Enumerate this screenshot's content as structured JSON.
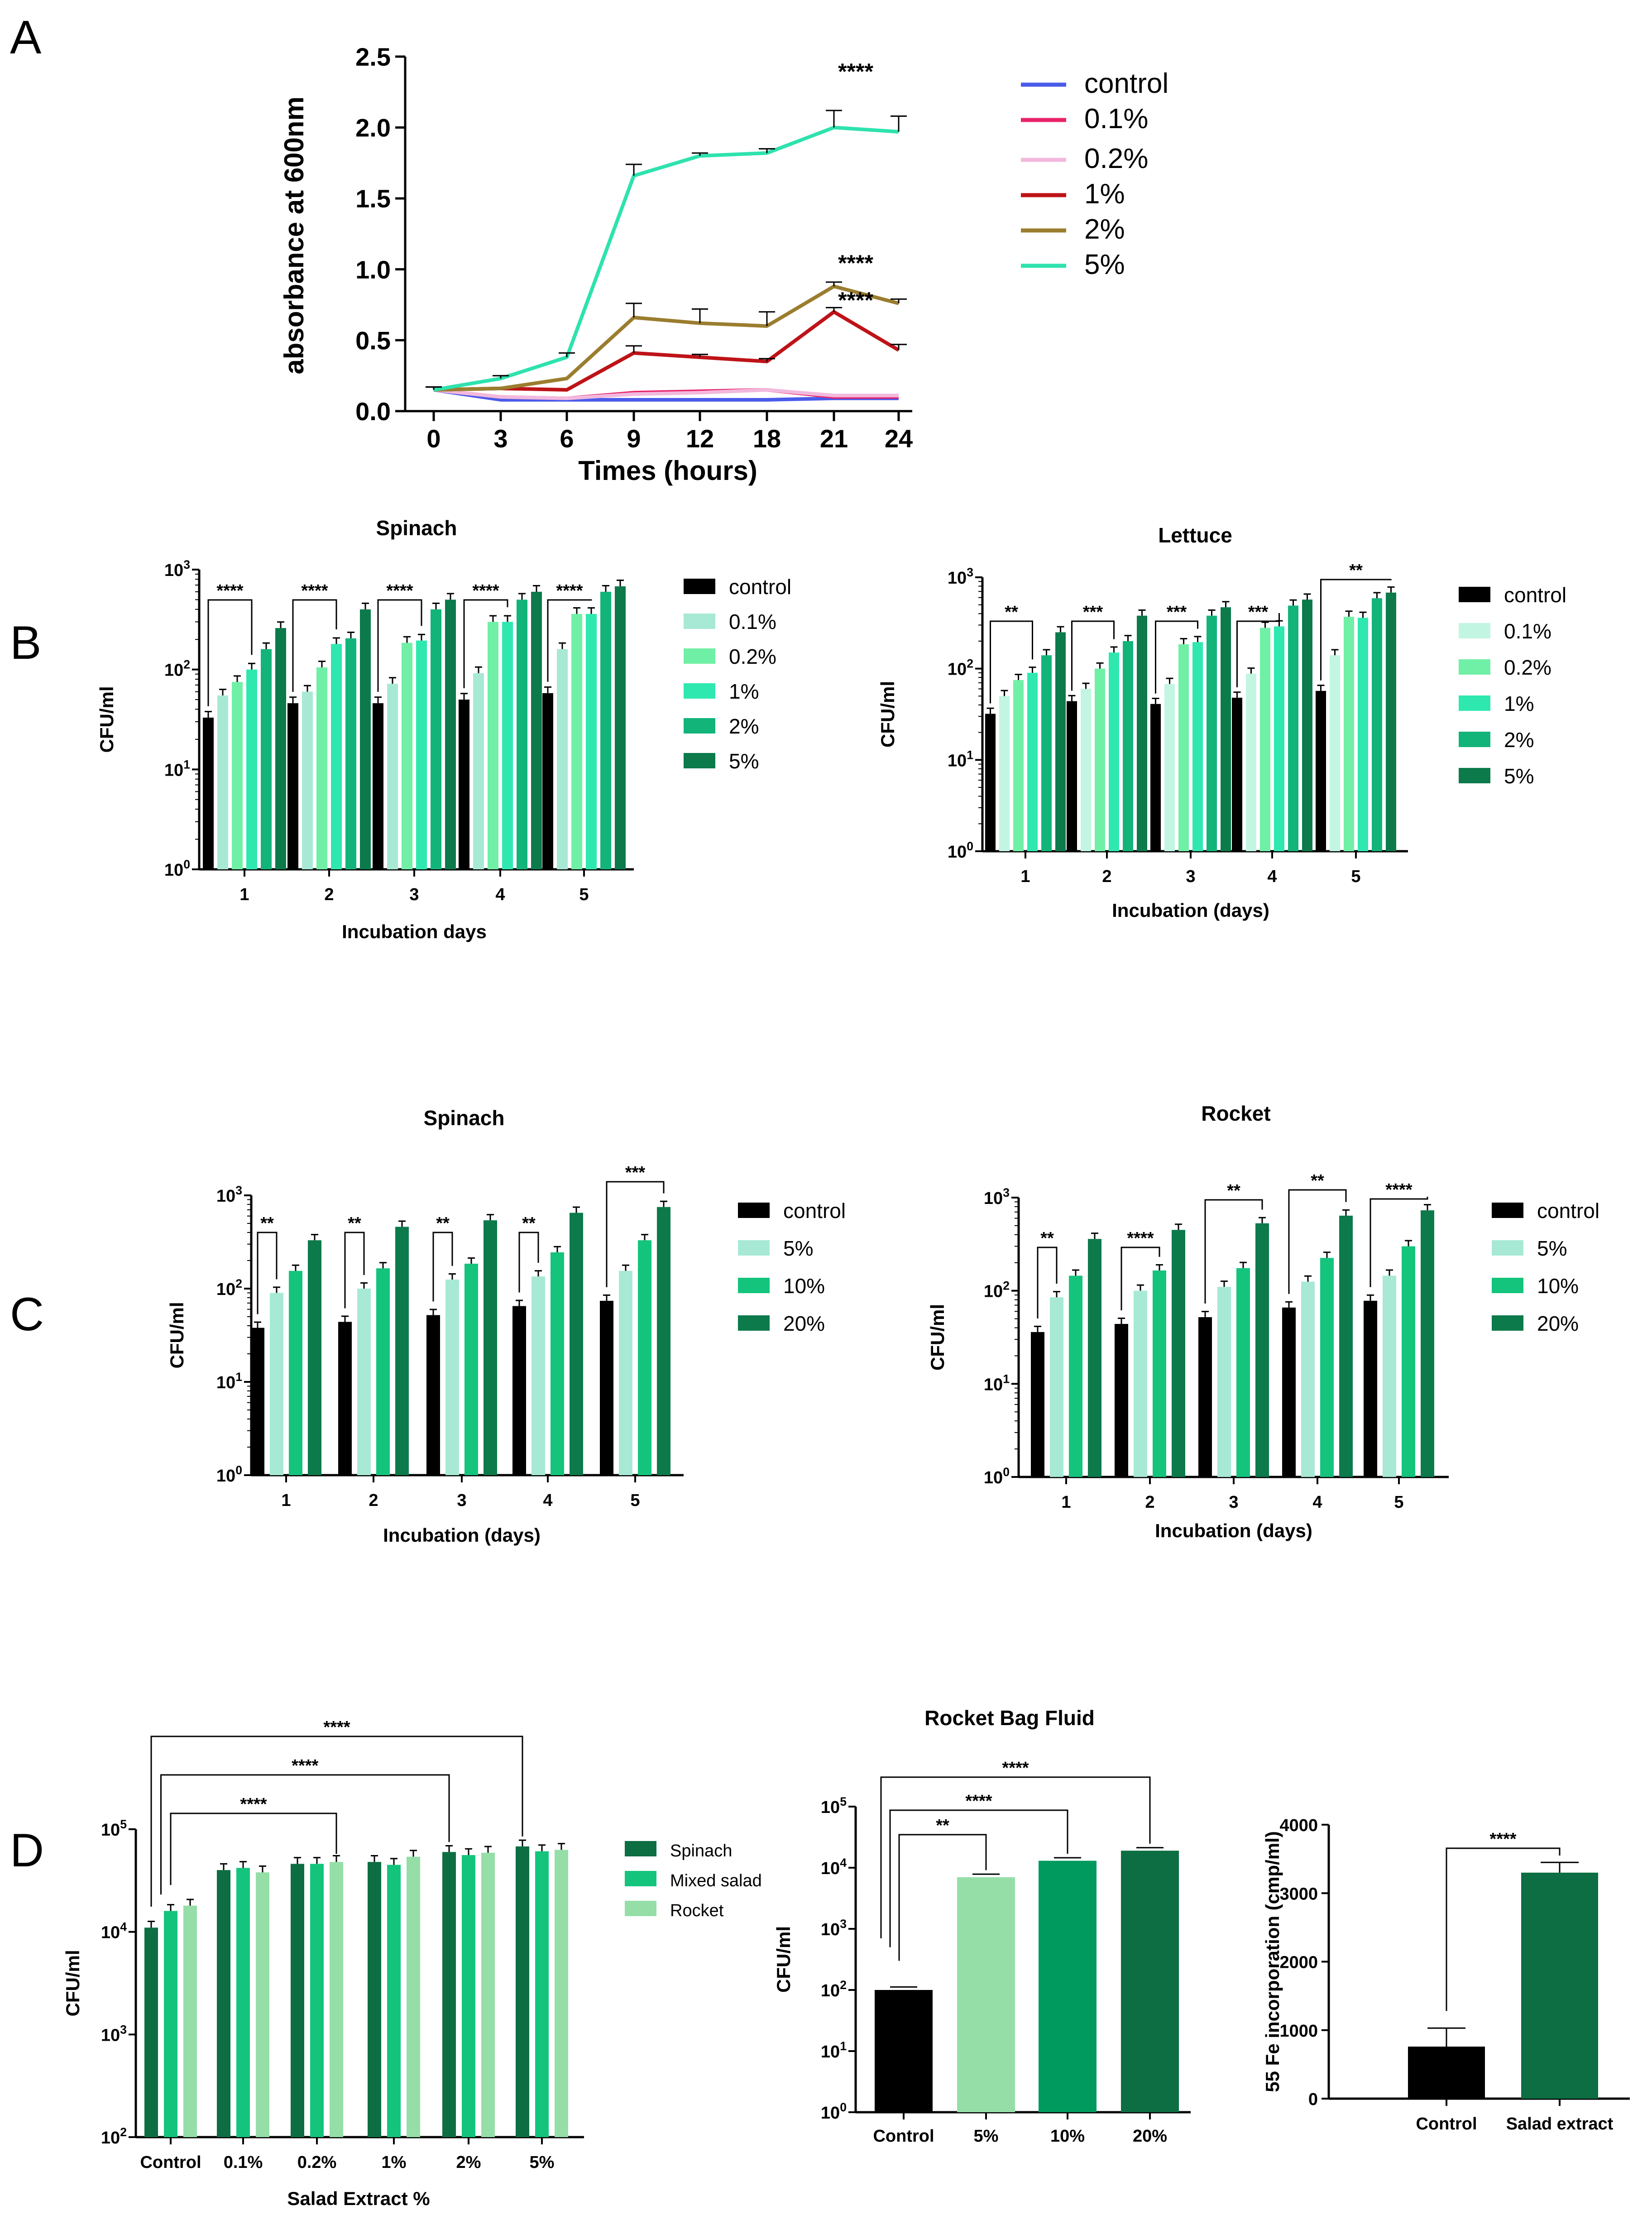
{
  "panels": [
    {
      "label": "A"
    },
    {
      "label": "B"
    },
    {
      "label": "C"
    },
    {
      "label": "D"
    }
  ],
  "chart_data": [
    {
      "type": "line",
      "title": "",
      "xlabel": "Times (hours)",
      "ylabel": "absorbance at 600nm",
      "categories": [
        "0",
        "3",
        "6",
        "9",
        "12",
        "18",
        "21",
        "24"
      ],
      "ylim": [
        0,
        2.5
      ],
      "yticks": [
        "0.0",
        "0.5",
        "1.0",
        "1.5",
        "2.0",
        "2.5"
      ],
      "series": [
        {
          "name": "control",
          "color": "#4a5bea",
          "values": [
            0.15,
            0.08,
            0.08,
            0.08,
            0.08,
            0.08,
            0.09,
            0.09
          ],
          "errors": [
            0.01,
            0.01,
            0.01,
            0.01,
            0.01,
            0.01,
            0.01,
            0.01
          ]
        },
        {
          "name": "0.1%",
          "color": "#e8236a",
          "values": [
            0.15,
            0.1,
            0.09,
            0.13,
            0.14,
            0.15,
            0.1,
            0.1
          ],
          "errors": [
            0.01,
            0.01,
            0.01,
            0.01,
            0.01,
            0.01,
            0.01,
            0.01
          ]
        },
        {
          "name": "0.2%",
          "color": "#f2b9dd",
          "values": [
            0.15,
            0.1,
            0.09,
            0.12,
            0.13,
            0.15,
            0.11,
            0.11
          ],
          "errors": [
            0.01,
            0.01,
            0.01,
            0.01,
            0.01,
            0.01,
            0.01,
            0.01
          ]
        },
        {
          "name": "1%",
          "color": "#be1318",
          "values": [
            0.15,
            0.16,
            0.15,
            0.41,
            0.38,
            0.35,
            0.7,
            0.43
          ],
          "errors": [
            0.02,
            0.01,
            0.01,
            0.05,
            0.02,
            0.02,
            0.03,
            0.04
          ]
        },
        {
          "name": "2%",
          "color": "#9a7d2e",
          "values": [
            0.15,
            0.16,
            0.23,
            0.66,
            0.62,
            0.6,
            0.88,
            0.76
          ],
          "errors": [
            0.02,
            0.01,
            0.01,
            0.1,
            0.1,
            0.1,
            0.03,
            0.03
          ]
        },
        {
          "name": "5%",
          "color": "#2ee2ae",
          "values": [
            0.15,
            0.23,
            0.38,
            1.66,
            1.8,
            1.82,
            2.0,
            1.97
          ],
          "errors": [
            0.02,
            0.02,
            0.03,
            0.08,
            0.02,
            0.03,
            0.12,
            0.11
          ]
        }
      ],
      "annotations": [
        {
          "text": "****",
          "series": "5%",
          "x": "21"
        },
        {
          "text": "****",
          "series": "2%",
          "x": "21"
        },
        {
          "text": "****",
          "series": "1%",
          "x": "21"
        }
      ]
    },
    {
      "type": "bar",
      "title": "Spinach",
      "xlabel": "Incubation days",
      "ylabel": "CFU/ml",
      "yscale": "log",
      "ylim": [
        1,
        1000
      ],
      "yticks": [
        {
          "base": "10",
          "exp": "0"
        },
        {
          "base": "10",
          "exp": "1"
        },
        {
          "base": "10",
          "exp": "2"
        },
        {
          "base": "10",
          "exp": "3"
        }
      ],
      "categories": [
        "1",
        "2",
        "3",
        "4",
        "5"
      ],
      "series": [
        {
          "name": "control",
          "color": "#000000",
          "values": [
            33,
            46,
            46,
            50,
            58
          ]
        },
        {
          "name": "0.1%",
          "color": "#a7e9d5",
          "values": [
            55,
            60,
            72,
            92,
            160
          ]
        },
        {
          "name": "0.2%",
          "color": "#70f0a6",
          "values": [
            75,
            105,
            185,
            300,
            360
          ]
        },
        {
          "name": "1%",
          "color": "#2ee8b0",
          "values": [
            100,
            180,
            195,
            300,
            360
          ]
        },
        {
          "name": "2%",
          "color": "#12b47a",
          "values": [
            160,
            205,
            400,
            500,
            600
          ]
        },
        {
          "name": "5%",
          "color": "#0c7a4b",
          "values": [
            260,
            400,
            500,
            600,
            680
          ]
        }
      ],
      "significance": [
        "****",
        "****",
        "****",
        "****",
        "****"
      ]
    },
    {
      "type": "bar",
      "title": "Lettuce",
      "xlabel": "Incubation (days)",
      "ylabel": "CFU/ml",
      "yscale": "log",
      "ylim": [
        1,
        1000
      ],
      "yticks": [
        {
          "base": "10",
          "exp": "0"
        },
        {
          "base": "10",
          "exp": "1"
        },
        {
          "base": "10",
          "exp": "2"
        },
        {
          "base": "10",
          "exp": "3"
        }
      ],
      "categories": [
        "1",
        "2",
        "3",
        "4",
        "5"
      ],
      "series": [
        {
          "name": "control",
          "color": "#000000",
          "values": [
            32,
            44,
            41,
            48,
            57
          ]
        },
        {
          "name": "0.1%",
          "color": "#c2f5e2",
          "values": [
            50,
            60,
            68,
            88,
            140
          ]
        },
        {
          "name": "0.2%",
          "color": "#70f0a6",
          "values": [
            75,
            100,
            185,
            280,
            370
          ]
        },
        {
          "name": "1%",
          "color": "#2ee8b0",
          "values": [
            90,
            150,
            195,
            290,
            360
          ]
        },
        {
          "name": "2%",
          "color": "#12b47a",
          "values": [
            140,
            200,
            380,
            490,
            590
          ]
        },
        {
          "name": "5%",
          "color": "#0c7a4b",
          "values": [
            250,
            380,
            470,
            570,
            680
          ]
        }
      ],
      "significance": [
        "**",
        "***",
        "***",
        "***",
        "**"
      ]
    },
    {
      "type": "bar",
      "title": "Spinach",
      "xlabel": "Incubation (days)",
      "ylabel": "CFU/ml",
      "yscale": "log",
      "ylim": [
        1,
        1000
      ],
      "yticks": [
        {
          "base": "10",
          "exp": "0"
        },
        {
          "base": "10",
          "exp": "1"
        },
        {
          "base": "10",
          "exp": "2"
        },
        {
          "base": "10",
          "exp": "3"
        }
      ],
      "categories": [
        "1",
        "2",
        "3",
        "4",
        "5"
      ],
      "series": [
        {
          "name": "control",
          "color": "#000000",
          "values": [
            38,
            44,
            52,
            65,
            74
          ]
        },
        {
          "name": "5%",
          "color": "#a7e9d5",
          "values": [
            90,
            100,
            125,
            135,
            155
          ]
        },
        {
          "name": "10%",
          "color": "#14c47c",
          "values": [
            155,
            165,
            185,
            245,
            330
          ]
        },
        {
          "name": "20%",
          "color": "#0c7a4b",
          "values": [
            330,
            460,
            540,
            650,
            750
          ]
        }
      ],
      "significance": [
        "**",
        "**",
        "**",
        "**",
        "***"
      ]
    },
    {
      "type": "bar",
      "title": "Rocket",
      "xlabel": "Incubation (days)",
      "ylabel": "CFU/ml",
      "yscale": "log",
      "ylim": [
        1,
        1000
      ],
      "yticks": [
        {
          "base": "10",
          "exp": "0"
        },
        {
          "base": "10",
          "exp": "1"
        },
        {
          "base": "10",
          "exp": "2"
        },
        {
          "base": "10",
          "exp": "3"
        }
      ],
      "categories": [
        "1",
        "2",
        "3",
        "4",
        "5"
      ],
      "series": [
        {
          "name": "control",
          "color": "#000000",
          "values": [
            36,
            44,
            52,
            66,
            78
          ]
        },
        {
          "name": "5%",
          "color": "#a7e9d5",
          "values": [
            85,
            100,
            110,
            125,
            145
          ]
        },
        {
          "name": "10%",
          "color": "#14c47c",
          "values": [
            145,
            165,
            175,
            225,
            300
          ]
        },
        {
          "name": "20%",
          "color": "#0c7a4b",
          "values": [
            360,
            450,
            530,
            640,
            730
          ]
        }
      ],
      "significance": [
        "**",
        "****",
        "**",
        "**",
        "****"
      ]
    },
    {
      "type": "bar",
      "title": "",
      "xlabel": "Salad Extract %",
      "ylabel": "CFU/ml",
      "yscale": "log",
      "ylim": [
        100,
        100000
      ],
      "yticks": [
        {
          "base": "10",
          "exp": "2"
        },
        {
          "base": "10",
          "exp": "3"
        },
        {
          "base": "10",
          "exp": "4"
        },
        {
          "base": "10",
          "exp": "5"
        }
      ],
      "categories": [
        "Control",
        "0.1%",
        "0.2%",
        "1%",
        "2%",
        "5%"
      ],
      "series": [
        {
          "name": "Spinach",
          "color": "#0c6e42",
          "values": [
            11000,
            40000,
            46000,
            48000,
            60000,
            68000
          ]
        },
        {
          "name": "Mixed salad",
          "color": "#14c47c",
          "values": [
            16000,
            42000,
            46000,
            45000,
            56000,
            61000
          ]
        },
        {
          "name": "Rocket",
          "color": "#96dea8",
          "values": [
            18000,
            38000,
            48000,
            54000,
            59000,
            63000
          ]
        }
      ],
      "significance": [
        "****",
        "****",
        "****"
      ]
    },
    {
      "type": "bar",
      "title": "Rocket Bag Fluid",
      "xlabel": "",
      "ylabel": "CFU/ml",
      "yscale": "log",
      "ylim": [
        1,
        100000
      ],
      "yticks": [
        {
          "base": "10",
          "exp": "0"
        },
        {
          "base": "10",
          "exp": "1"
        },
        {
          "base": "10",
          "exp": "2"
        },
        {
          "base": "10",
          "exp": "3"
        },
        {
          "base": "10",
          "exp": "4"
        },
        {
          "base": "10",
          "exp": "5"
        }
      ],
      "categories": [
        "Control",
        "5%",
        "10%",
        "20%"
      ],
      "series": [
        {
          "name": "Rocket Bag Fluid",
          "colors": [
            "#000000",
            "#96dea8",
            "#009a5e",
            "#0c6e42"
          ],
          "values": [
            100,
            7000,
            13000,
            19000
          ]
        }
      ],
      "significance": [
        "**",
        "****",
        "****"
      ]
    },
    {
      "type": "bar",
      "title": "",
      "xlabel": "",
      "ylabel": "55 Fe incorporation (cmp/ml)",
      "ylim": [
        0,
        4000
      ],
      "yticks": [
        "0",
        "1000",
        "2000",
        "3000",
        "4000"
      ],
      "categories": [
        "Control",
        "Salad extract"
      ],
      "series": [
        {
          "name": "55 Fe incorporation",
          "colors": [
            "#000000",
            "#0c6e42"
          ],
          "values": [
            760,
            3300
          ],
          "errors": [
            270,
            150
          ]
        }
      ],
      "significance": [
        "****"
      ]
    }
  ]
}
